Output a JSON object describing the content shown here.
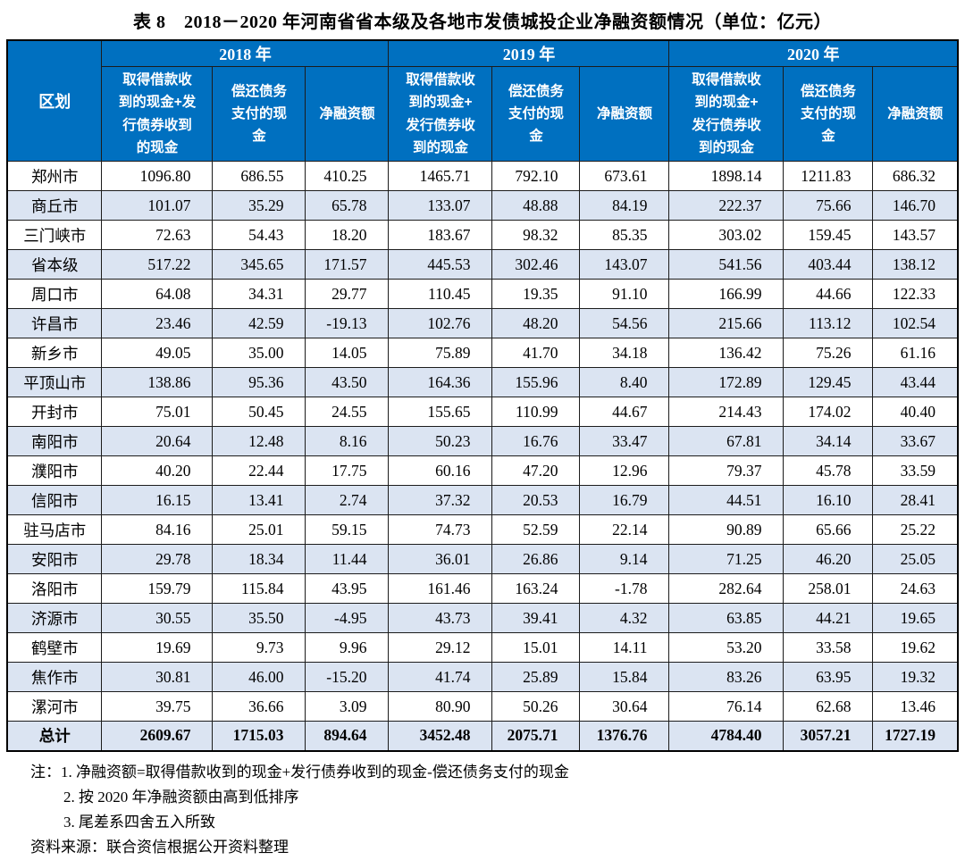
{
  "title": "表 8　2018－2020 年河南省省本级及各地市发债城投企业净融资额情况（单位：亿元）",
  "table": {
    "region_header": "区划",
    "year_groups": [
      {
        "year": "2018 年",
        "columns": [
          "取得借款收\n到的现金+发\n行债券收到\n的现金",
          "偿还债务\n支付的现\n金",
          "净融资额"
        ]
      },
      {
        "year": "2019 年",
        "columns": [
          "取得借款收\n到的现金+\n发行债券收\n到的现金",
          "偿还债务\n支付的现\n金",
          "净融资额"
        ]
      },
      {
        "year": "2020 年",
        "columns": [
          "取得借款收\n到的现金+\n发行债券收\n到的现金",
          "偿还债务\n支付的现\n金",
          "净融资额"
        ]
      }
    ],
    "rows": [
      {
        "region": "郑州市",
        "values": [
          "1096.80",
          "686.55",
          "410.25",
          "1465.71",
          "792.10",
          "673.61",
          "1898.14",
          "1211.83",
          "686.32"
        ]
      },
      {
        "region": "商丘市",
        "values": [
          "101.07",
          "35.29",
          "65.78",
          "133.07",
          "48.88",
          "84.19",
          "222.37",
          "75.66",
          "146.70"
        ]
      },
      {
        "region": "三门峡市",
        "values": [
          "72.63",
          "54.43",
          "18.20",
          "183.67",
          "98.32",
          "85.35",
          "303.02",
          "159.45",
          "143.57"
        ]
      },
      {
        "region": "省本级",
        "values": [
          "517.22",
          "345.65",
          "171.57",
          "445.53",
          "302.46",
          "143.07",
          "541.56",
          "403.44",
          "138.12"
        ]
      },
      {
        "region": "周口市",
        "values": [
          "64.08",
          "34.31",
          "29.77",
          "110.45",
          "19.35",
          "91.10",
          "166.99",
          "44.66",
          "122.33"
        ]
      },
      {
        "region": "许昌市",
        "values": [
          "23.46",
          "42.59",
          "-19.13",
          "102.76",
          "48.20",
          "54.56",
          "215.66",
          "113.12",
          "102.54"
        ]
      },
      {
        "region": "新乡市",
        "values": [
          "49.05",
          "35.00",
          "14.05",
          "75.89",
          "41.70",
          "34.18",
          "136.42",
          "75.26",
          "61.16"
        ]
      },
      {
        "region": "平顶山市",
        "values": [
          "138.86",
          "95.36",
          "43.50",
          "164.36",
          "155.96",
          "8.40",
          "172.89",
          "129.45",
          "43.44"
        ]
      },
      {
        "region": "开封市",
        "values": [
          "75.01",
          "50.45",
          "24.55",
          "155.65",
          "110.99",
          "44.67",
          "214.43",
          "174.02",
          "40.40"
        ]
      },
      {
        "region": "南阳市",
        "values": [
          "20.64",
          "12.48",
          "8.16",
          "50.23",
          "16.76",
          "33.47",
          "67.81",
          "34.14",
          "33.67"
        ]
      },
      {
        "region": "濮阳市",
        "values": [
          "40.20",
          "22.44",
          "17.75",
          "60.16",
          "47.20",
          "12.96",
          "79.37",
          "45.78",
          "33.59"
        ]
      },
      {
        "region": "信阳市",
        "values": [
          "16.15",
          "13.41",
          "2.74",
          "37.32",
          "20.53",
          "16.79",
          "44.51",
          "16.10",
          "28.41"
        ]
      },
      {
        "region": "驻马店市",
        "values": [
          "84.16",
          "25.01",
          "59.15",
          "74.73",
          "52.59",
          "22.14",
          "90.89",
          "65.66",
          "25.22"
        ]
      },
      {
        "region": "安阳市",
        "values": [
          "29.78",
          "18.34",
          "11.44",
          "36.01",
          "26.86",
          "9.14",
          "71.25",
          "46.20",
          "25.05"
        ]
      },
      {
        "region": "洛阳市",
        "values": [
          "159.79",
          "115.84",
          "43.95",
          "161.46",
          "163.24",
          "-1.78",
          "282.64",
          "258.01",
          "24.63"
        ]
      },
      {
        "region": "济源市",
        "values": [
          "30.55",
          "35.50",
          "-4.95",
          "43.73",
          "39.41",
          "4.32",
          "63.85",
          "44.21",
          "19.65"
        ]
      },
      {
        "region": "鹤壁市",
        "values": [
          "19.69",
          "9.73",
          "9.96",
          "29.12",
          "15.01",
          "14.11",
          "53.20",
          "33.58",
          "19.62"
        ]
      },
      {
        "region": "焦作市",
        "values": [
          "30.81",
          "46.00",
          "-15.20",
          "41.74",
          "25.89",
          "15.84",
          "83.26",
          "63.95",
          "19.32"
        ]
      },
      {
        "region": "漯河市",
        "values": [
          "39.75",
          "36.66",
          "3.09",
          "80.90",
          "50.26",
          "30.64",
          "76.14",
          "62.68",
          "13.46"
        ]
      }
    ],
    "total_row": {
      "region": "总计",
      "values": [
        "2609.67",
        "1715.03",
        "894.64",
        "3452.48",
        "2075.71",
        "1376.76",
        "4784.40",
        "3057.21",
        "1727.19"
      ]
    }
  },
  "notes": {
    "label": "注：",
    "items": [
      "1. 净融资额=取得借款收到的现金+发行债券收到的现金-偿还债务支付的现金",
      "2. 按 2020 年净融资额由高到低排序",
      "3. 尾差系四舍五入所致"
    ],
    "source": "资料来源：联合资信根据公开资料整理"
  },
  "colors": {
    "header_bg": "#0070C0",
    "header_text": "#FFFFFF",
    "stripe_bg": "#DBE4F2"
  }
}
